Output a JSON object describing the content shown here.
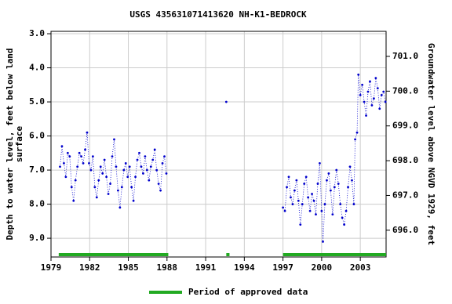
{
  "chart_data": {
    "type": "scatter",
    "title": "USGS 435631071413620 NH-K1-BEDROCK",
    "y_label": [
      "Depth to water level, feet below land",
      "surface"
    ],
    "y2_label": "Groundwater level above NGVD 1929, feet",
    "color": "#0000cc",
    "x": [
      1979.7,
      1979.85,
      1980.0,
      1980.15,
      1980.3,
      1980.45,
      1980.6,
      1980.75,
      1980.9,
      1981.05,
      1981.2,
      1981.35,
      1981.5,
      1981.65,
      1981.8,
      1981.95,
      1982.1,
      1982.25,
      1982.4,
      1982.55,
      1982.7,
      1982.85,
      1983.0,
      1983.15,
      1983.3,
      1983.45,
      1983.6,
      1983.75,
      1983.9,
      1984.05,
      1984.2,
      1984.35,
      1984.5,
      1984.65,
      1984.8,
      1984.95,
      1985.1,
      1985.25,
      1985.4,
      1985.55,
      1985.7,
      1985.85,
      1986.0,
      1986.15,
      1986.3,
      1986.45,
      1986.6,
      1986.75,
      1986.9,
      1987.05,
      1987.2,
      1987.35,
      1987.5,
      1987.65,
      1987.8,
      1987.95,
      null,
      1992.6,
      null,
      1997.0,
      1997.15,
      1997.3,
      1997.45,
      1997.6,
      1997.75,
      1997.9,
      1998.05,
      1998.2,
      1998.35,
      1998.5,
      1998.65,
      1998.8,
      1998.95,
      1999.1,
      1999.25,
      1999.4,
      1999.55,
      1999.7,
      1999.85,
      2000.0,
      2000.1,
      2000.25,
      2000.4,
      2000.55,
      2000.7,
      2000.85,
      2001.0,
      2001.15,
      2001.3,
      2001.45,
      2001.6,
      2001.75,
      2001.9,
      2002.05,
      2002.2,
      2002.35,
      2002.5,
      2002.6,
      2002.75,
      2002.85,
      2003.0,
      2003.15,
      2003.3,
      2003.45,
      2003.6,
      2003.75,
      2003.9,
      2004.05,
      2004.2,
      2004.35,
      2004.5,
      2004.65,
      2004.8,
      2004.95
    ],
    "values": [
      6.9,
      6.3,
      6.8,
      7.2,
      6.5,
      6.6,
      7.5,
      7.9,
      7.3,
      6.9,
      6.5,
      6.6,
      6.8,
      6.4,
      5.9,
      6.8,
      7.0,
      6.6,
      7.5,
      7.8,
      7.3,
      6.9,
      7.1,
      6.7,
      7.2,
      7.7,
      7.4,
      6.6,
      6.1,
      6.9,
      7.6,
      8.1,
      7.5,
      7.0,
      6.8,
      7.2,
      6.9,
      7.5,
      7.9,
      7.2,
      6.7,
      6.5,
      6.9,
      7.1,
      6.6,
      7.0,
      7.3,
      6.9,
      6.7,
      6.4,
      7.0,
      7.4,
      7.6,
      6.8,
      6.6,
      7.1,
      null,
      5.0,
      null,
      8.1,
      8.2,
      7.5,
      7.2,
      7.8,
      8.0,
      7.6,
      7.3,
      7.9,
      8.6,
      8.0,
      7.4,
      7.2,
      7.8,
      8.2,
      7.7,
      7.9,
      8.3,
      7.4,
      6.8,
      8.2,
      9.1,
      8.0,
      7.3,
      7.1,
      7.6,
      8.3,
      7.5,
      7.0,
      7.4,
      8.0,
      8.4,
      8.6,
      8.2,
      7.5,
      6.9,
      7.3,
      8.0,
      6.1,
      5.9,
      4.2,
      4.8,
      4.5,
      5.0,
      5.4,
      4.7,
      4.4,
      5.1,
      4.9,
      4.3,
      4.6,
      5.2,
      4.8,
      4.7,
      5.0
    ],
    "xlim": [
      1979,
      2005
    ],
    "xticks": [
      1979,
      1982,
      1985,
      1988,
      1991,
      1994,
      1997,
      2000,
      2003
    ],
    "ylim": [
      2.93,
      9.55
    ],
    "y_inverted": true,
    "yticks": [
      {
        "value": 3,
        "label": "3.0"
      },
      {
        "value": 4,
        "label": "4.0"
      },
      {
        "value": 5,
        "label": "5.0"
      },
      {
        "value": 6,
        "label": "6.0"
      },
      {
        "value": 7,
        "label": "7.0"
      },
      {
        "value": 8,
        "label": "8.0"
      },
      {
        "value": 9,
        "label": "9.0"
      }
    ],
    "y2lim": [
      695.23,
      701.72
    ],
    "y2ticks": [
      {
        "value": 696,
        "label": "696.0"
      },
      {
        "value": 697,
        "label": "697.0"
      },
      {
        "value": 698,
        "label": "698.0"
      },
      {
        "value": 699,
        "label": "699.0"
      },
      {
        "value": 700,
        "label": "700.0"
      },
      {
        "value": 701,
        "label": "701.0"
      }
    ],
    "grid": true,
    "approved_periods": [
      [
        1979.6,
        1988.1
      ],
      [
        1992.6,
        1992.85
      ],
      [
        1997.0,
        2005.0
      ]
    ],
    "approved_color": "#22aa22",
    "legend": "Period of approved data"
  }
}
